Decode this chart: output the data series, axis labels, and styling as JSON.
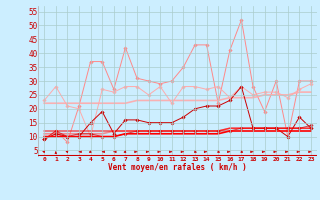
{
  "background_color": "#cceeff",
  "grid_color": "#aacccc",
  "xlabel": "Vent moyen/en rafales ( km/h )",
  "x": [
    0,
    1,
    2,
    3,
    4,
    5,
    6,
    7,
    8,
    9,
    10,
    11,
    12,
    13,
    14,
    15,
    16,
    17,
    18,
    19,
    20,
    21,
    22,
    23
  ],
  "ylim": [
    3,
    57
  ],
  "xlim": [
    -0.5,
    23.5
  ],
  "yticks": [
    5,
    10,
    15,
    20,
    25,
    30,
    35,
    40,
    45,
    50,
    55
  ],
  "series": [
    {
      "name": "gust_high",
      "color": "#ff8888",
      "alpha": 1.0,
      "linewidth": 0.7,
      "marker": "D",
      "markersize": 1.8,
      "values": [
        9,
        12,
        8,
        21,
        37,
        37,
        27,
        42,
        31,
        30,
        29,
        30,
        35,
        43,
        43,
        22,
        41,
        52,
        28,
        19,
        30,
        10,
        30,
        30
      ]
    },
    {
      "name": "mean_high",
      "color": "#ffaaaa",
      "alpha": 1.0,
      "linewidth": 0.7,
      "marker": "D",
      "markersize": 1.8,
      "values": [
        23,
        28,
        21,
        20,
        10,
        27,
        26,
        28,
        28,
        25,
        28,
        22,
        28,
        28,
        27,
        28,
        24,
        28,
        25,
        26,
        26,
        24,
        27,
        29
      ]
    },
    {
      "name": "mean_trend_high",
      "color": "#ffaaaa",
      "alpha": 0.9,
      "linewidth": 1.2,
      "marker": null,
      "markersize": 0,
      "values": [
        22,
        22,
        22,
        22,
        22,
        22,
        22,
        22,
        23,
        23,
        23,
        23,
        23,
        23,
        23,
        23,
        24,
        24,
        24,
        25,
        25,
        25,
        26,
        26
      ]
    },
    {
      "name": "mean_trend_mid",
      "color": "#ff6666",
      "alpha": 0.7,
      "linewidth": 1.2,
      "marker": null,
      "markersize": 0,
      "values": [
        11,
        11,
        11,
        11,
        11,
        11,
        12,
        12,
        12,
        12,
        12,
        12,
        12,
        12,
        12,
        12,
        13,
        13,
        13,
        13,
        13,
        13,
        13,
        13
      ]
    },
    {
      "name": "gust_low",
      "color": "#cc0000",
      "alpha": 1.0,
      "linewidth": 0.7,
      "marker": "D",
      "markersize": 1.8,
      "values": [
        9,
        11,
        10,
        10,
        15,
        19,
        11,
        16,
        16,
        15,
        15,
        15,
        17,
        20,
        21,
        21,
        23,
        28,
        13,
        13,
        13,
        10,
        17,
        13
      ]
    },
    {
      "name": "mean_low",
      "color": "#cc0000",
      "alpha": 0.7,
      "linewidth": 0.7,
      "marker": "D",
      "markersize": 1.8,
      "values": [
        9,
        12,
        10,
        11,
        11,
        10,
        10,
        11,
        12,
        12,
        12,
        12,
        12,
        12,
        12,
        12,
        12,
        13,
        13,
        13,
        13,
        13,
        13,
        14
      ]
    },
    {
      "name": "flat_trend1",
      "color": "#ff0000",
      "alpha": 1.0,
      "linewidth": 1.2,
      "marker": null,
      "markersize": 0,
      "values": [
        10,
        10,
        10,
        10,
        10,
        10,
        10,
        11,
        11,
        11,
        11,
        11,
        11,
        11,
        11,
        11,
        12,
        12,
        12,
        12,
        12,
        12,
        12,
        12
      ]
    },
    {
      "name": "flat_trend2",
      "color": "#ff0000",
      "alpha": 0.7,
      "linewidth": 1.0,
      "marker": null,
      "markersize": 0,
      "values": [
        12,
        12,
        12,
        12,
        12,
        12,
        12,
        12,
        12,
        12,
        12,
        12,
        12,
        12,
        12,
        12,
        13,
        13,
        13,
        13,
        13,
        13,
        13,
        13
      ]
    }
  ],
  "wind_symbol_y": 4.5,
  "wind_angles": [
    -135,
    -180,
    -135,
    -90,
    -45,
    -90,
    -90,
    -45,
    90,
    90,
    90,
    90,
    90,
    45,
    90,
    45,
    90,
    45,
    90,
    90,
    90,
    90,
    90,
    90
  ]
}
